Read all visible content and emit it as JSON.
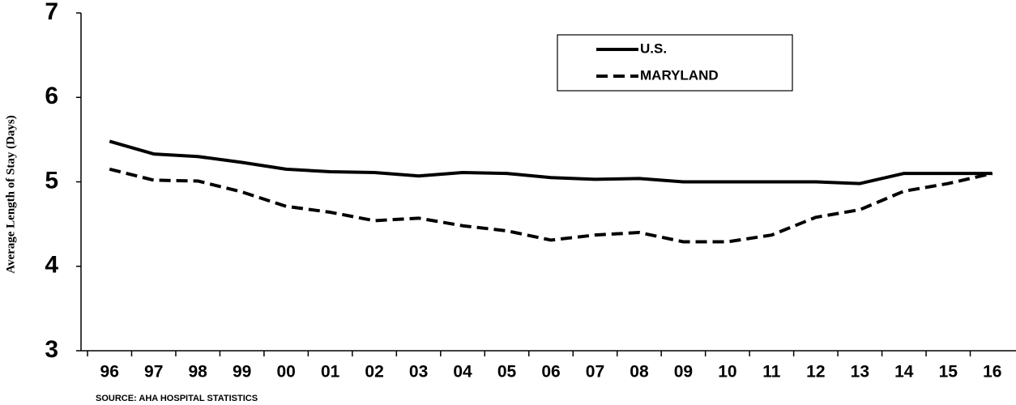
{
  "chart_data": {
    "type": "line",
    "y_label": "Average Length of Stay (Days)",
    "source": "SOURCE:  AHA HOSPITAL STATISTICS",
    "categories": [
      "96",
      "97",
      "98",
      "99",
      "00",
      "01",
      "02",
      "03",
      "04",
      "05",
      "06",
      "07",
      "08",
      "09",
      "10",
      "11",
      "12",
      "13",
      "14",
      "15",
      "16"
    ],
    "series": [
      {
        "name": "U.S.",
        "color": "#000000",
        "line_style": "solid",
        "values": [
          5.48,
          5.33,
          5.3,
          5.23,
          5.15,
          5.12,
          5.11,
          5.07,
          5.11,
          5.1,
          5.05,
          5.03,
          5.04,
          5.0,
          5.0,
          5.0,
          5.0,
          4.98,
          5.1,
          5.1,
          5.1
        ]
      },
      {
        "name": "MARYLAND",
        "color": "#000000",
        "line_style": "dashed",
        "values": [
          5.15,
          5.02,
          5.01,
          4.88,
          4.71,
          4.64,
          4.54,
          4.57,
          4.48,
          4.42,
          4.31,
          4.37,
          4.4,
          4.29,
          4.29,
          4.37,
          4.58,
          4.67,
          4.89,
          4.98,
          5.1
        ]
      }
    ],
    "ylim": [
      3,
      7
    ],
    "yticks": [
      3,
      4,
      5,
      6,
      7
    ],
    "grid": false,
    "legend": "top-right"
  }
}
